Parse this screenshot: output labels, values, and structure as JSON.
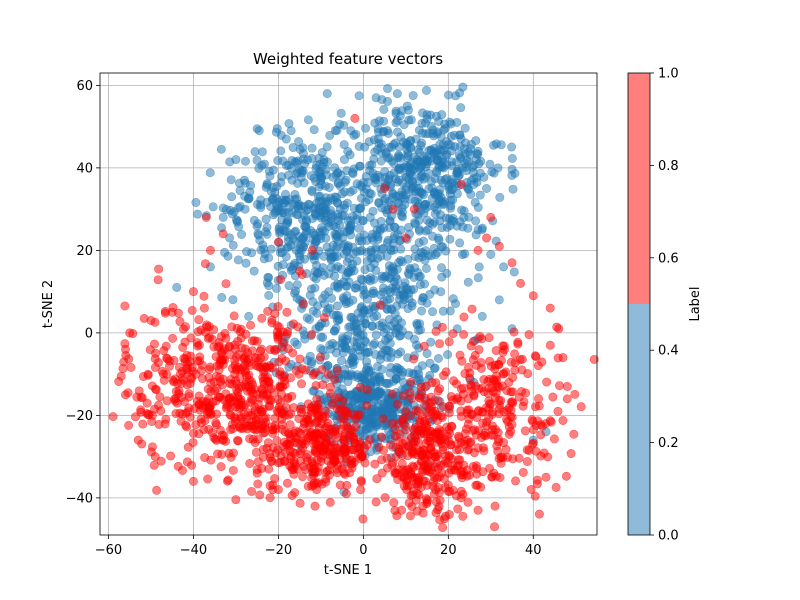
{
  "chart_data": {
    "type": "scatter",
    "title": "Weighted feature vectors",
    "xlabel": "t-SNE 1",
    "ylabel": "t-SNE 2",
    "xlim": [
      -62,
      55
    ],
    "ylim": [
      -49,
      63
    ],
    "xticks": [
      -60,
      -40,
      -20,
      0,
      20,
      40
    ],
    "yticks": [
      -40,
      -20,
      0,
      20,
      40,
      60
    ],
    "grid": true,
    "colorbar": {
      "label": "Label",
      "range": [
        0,
        1
      ],
      "ticks": [
        "0.0",
        "0.2",
        "0.4",
        "0.6",
        "0.8",
        "1.0"
      ],
      "colors": [
        "#1f77b4",
        "#ff0000"
      ],
      "bins": 2
    },
    "point_alpha": 0.5,
    "series": [
      {
        "label_value": 0,
        "color": "#1f77b4",
        "approx_count": 1700,
        "clusters": [
          {
            "center": [
              5,
              25
            ],
            "spread": [
              11,
              14
            ]
          },
          {
            "center": [
              0,
              0
            ],
            "spread": [
              9,
              10
            ]
          },
          {
            "center": [
              15,
              40
            ],
            "spread": [
              9,
              8
            ]
          },
          {
            "center": [
              -15,
              30
            ],
            "spread": [
              9,
              9
            ]
          },
          {
            "center": [
              3,
              -18
            ],
            "spread": [
              6,
              5
            ]
          }
        ],
        "points": [
          [
            -8.5,
            58
          ],
          [
            -1,
            57.5
          ],
          [
            3,
            57
          ],
          [
            8,
            58
          ],
          [
            -17,
            49
          ],
          [
            -25,
            49.5
          ],
          [
            -30,
            42
          ],
          [
            -31,
            33
          ],
          [
            -33,
            28
          ],
          [
            -36,
            16
          ],
          [
            -27,
            4
          ],
          [
            -22,
            38
          ],
          [
            26,
            36
          ],
          [
            27,
            44
          ],
          [
            29,
            35
          ],
          [
            27,
            25
          ],
          [
            30,
            19
          ],
          [
            33,
            16
          ],
          [
            32,
            8
          ],
          [
            28,
            4
          ],
          [
            26,
            -12
          ],
          [
            35,
            1
          ],
          [
            40,
            -26
          ],
          [
            43,
            -24
          ],
          [
            12,
            -14
          ],
          [
            5,
            -22
          ],
          [
            0,
            -25
          ],
          [
            -5,
            -20
          ],
          [
            -10,
            -17
          ],
          [
            15,
            -5
          ]
        ]
      },
      {
        "label_value": 1,
        "color": "#ff0000",
        "approx_count": 1400,
        "clusters": [
          {
            "center": [
              -38,
              -12
            ],
            "spread": [
              9,
              10
            ]
          },
          {
            "center": [
              30,
              -18
            ],
            "spread": [
              10,
              10
            ]
          },
          {
            "center": [
              -25,
              -15
            ],
            "spread": [
              8,
              10
            ]
          },
          {
            "center": [
              15,
              -30
            ],
            "spread": [
              7,
              7
            ]
          },
          {
            "center": [
              -10,
              -28
            ],
            "spread": [
              6,
              5
            ]
          }
        ],
        "points": [
          [
            -57,
            -10.5
          ],
          [
            -56,
            -15
          ],
          [
            -56,
            -4
          ],
          [
            -55,
            0
          ],
          [
            -53,
            -26
          ],
          [
            -49,
            -30
          ],
          [
            -40,
            -36
          ],
          [
            -37,
            28
          ],
          [
            -36,
            20
          ],
          [
            -33,
            24
          ],
          [
            -25,
            -34
          ],
          [
            -20,
            -38
          ],
          [
            -17,
            -30
          ],
          [
            -11,
            -38
          ],
          [
            -5,
            -33
          ],
          [
            3,
            -41
          ],
          [
            -4,
            -39
          ],
          [
            9,
            -43
          ],
          [
            14,
            -42
          ],
          [
            17,
            -38
          ],
          [
            23,
            -40
          ],
          [
            27,
            -43
          ],
          [
            31,
            -42
          ],
          [
            43,
            -35
          ],
          [
            48,
            -13
          ],
          [
            48,
            -16
          ],
          [
            47,
            -6
          ],
          [
            44,
            -3
          ],
          [
            46,
            1
          ],
          [
            44,
            6
          ],
          [
            40,
            9
          ],
          [
            37,
            12
          ],
          [
            35,
            17
          ],
          [
            32,
            21
          ],
          [
            29,
            23
          ],
          [
            27,
            20
          ],
          [
            30,
            28
          ],
          [
            -2,
            52
          ],
          [
            -20,
            22
          ],
          [
            -15,
            15
          ],
          [
            10,
            23
          ],
          [
            12,
            30
          ],
          [
            7,
            30
          ],
          [
            23,
            36
          ],
          [
            5,
            35
          ],
          [
            -12,
            20
          ],
          [
            -18,
            5
          ],
          [
            -40,
            10
          ],
          [
            -45,
            5
          ],
          [
            -50,
            3
          ]
        ]
      }
    ]
  }
}
